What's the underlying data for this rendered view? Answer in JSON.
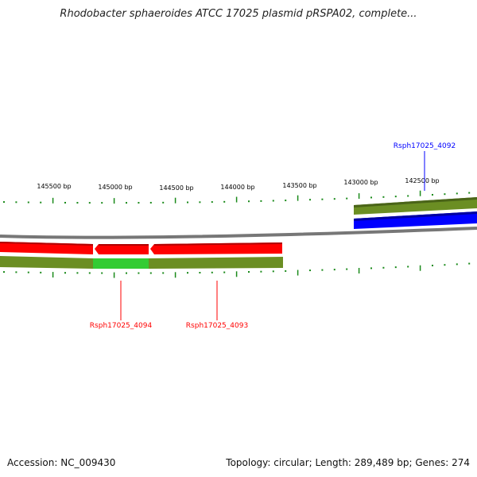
{
  "title": "Rhodobacter sphaeroides ATCC 17025 plasmid pRSPA02, complete...",
  "footer": {
    "accession": "Accession: NC_009430",
    "summary": "Topology: circular; Length: 289,489 bp; Genes: 274"
  },
  "tick_labels": [
    "145500 bp",
    "145000 bp",
    "144500 bp",
    "144000 bp",
    "143500 bp",
    "143000 bp",
    "142500 bp"
  ],
  "genes": [
    {
      "name": "Rsph17025_4092",
      "color": "#0000ff",
      "strand": "forward"
    },
    {
      "name": "Rsph17025_4094",
      "color": "#ff0000",
      "strand": "reverse"
    },
    {
      "name": "Rsph17025_4093",
      "color": "#ff0000",
      "strand": "reverse"
    }
  ],
  "colors": {
    "backbone": "#808080",
    "ticks": "#1a8a1a",
    "olive": "#6b8e23",
    "highlight": "#33cc33"
  }
}
